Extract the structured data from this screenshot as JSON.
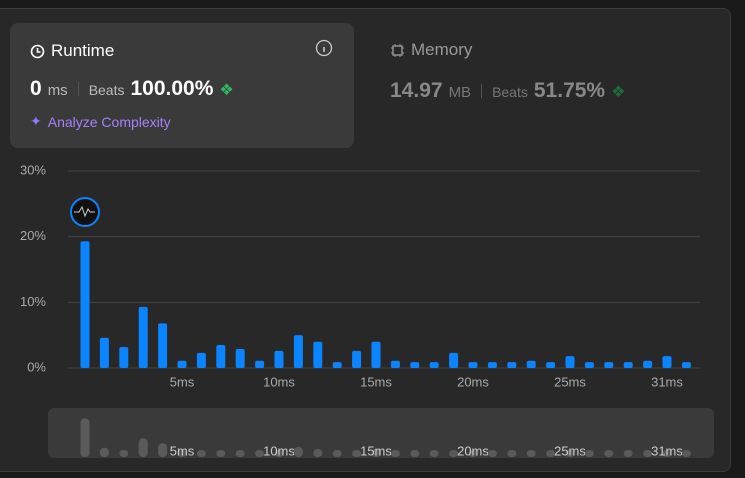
{
  "runtime": {
    "title": "Runtime",
    "value": "0",
    "unit": "ms",
    "beats_label": "Beats",
    "beats": "100.00%",
    "analyze": "Analyze Complexity"
  },
  "memory": {
    "title": "Memory",
    "value": "14.97",
    "unit": "MB",
    "beats_label": "Beats",
    "beats": "51.75%"
  },
  "chart_data": {
    "type": "bar",
    "categories": [
      null,
      null,
      null,
      null,
      null,
      "5ms",
      null,
      null,
      null,
      null,
      "10ms",
      null,
      null,
      null,
      null,
      "15ms",
      null,
      null,
      null,
      null,
      "20ms",
      null,
      null,
      null,
      null,
      "25ms",
      null,
      null,
      null,
      null,
      "31ms",
      null
    ],
    "values": [
      19.3,
      4.6,
      3.2,
      9.3,
      6.8,
      1.1,
      2.3,
      3.5,
      2.9,
      1.1,
      2.6,
      5.0,
      4.0,
      0.9,
      2.6,
      4.0,
      1.1,
      0.9,
      0.9,
      2.3,
      0.9,
      0.9,
      0.9,
      1.1,
      0.9,
      1.8,
      0.9,
      0.9,
      0.9,
      1.1,
      1.8,
      0.9
    ],
    "color": "#0a84ff",
    "overview_color": "#5a5a5a",
    "ylim": [
      0,
      30
    ],
    "yticks": [
      {
        "value": 0,
        "label": "0%"
      },
      {
        "value": 10,
        "label": "10%"
      },
      {
        "value": 20,
        "label": "20%"
      },
      {
        "value": 30,
        "label": "30%"
      }
    ],
    "grid": true
  }
}
